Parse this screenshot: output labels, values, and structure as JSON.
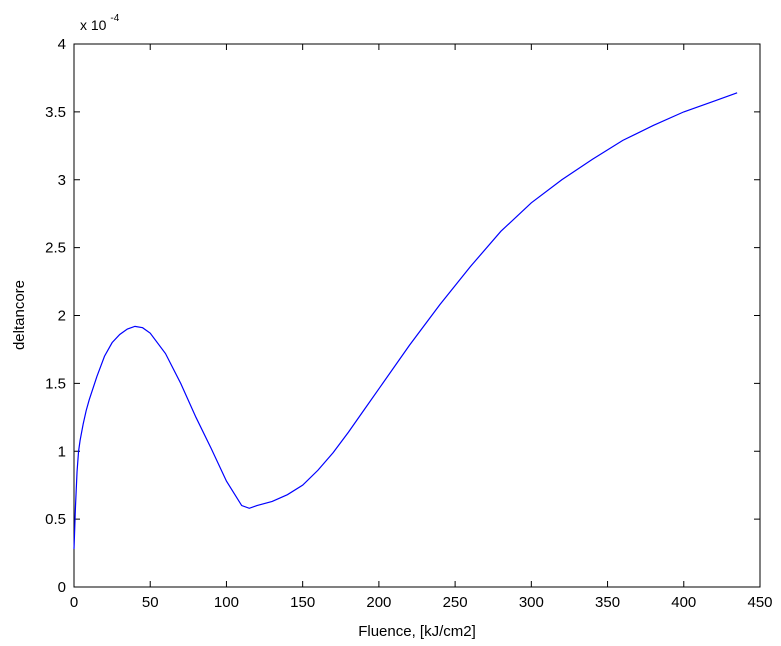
{
  "chart_data": {
    "type": "line",
    "title": "",
    "xlabel": "Fluence, [kJ/cm2]",
    "ylabel": "deltancore",
    "y_multiplier": {
      "base": "x 10",
      "exponent": "-4"
    },
    "xlim": [
      0,
      450
    ],
    "ylim": [
      0,
      4
    ],
    "xticks": [
      "0",
      "50",
      "100",
      "150",
      "200",
      "250",
      "300",
      "350",
      "400",
      "450"
    ],
    "yticks": [
      "0",
      "0.5",
      "1",
      "1.5",
      "2",
      "2.5",
      "3",
      "3.5",
      "4"
    ],
    "grid": false,
    "legend": "none",
    "series": [
      {
        "color": "#0000ff",
        "x": [
          0,
          1,
          2,
          3,
          4,
          6,
          8,
          10,
          15,
          20,
          25,
          30,
          35,
          40,
          45,
          50,
          60,
          70,
          80,
          90,
          100,
          110,
          115,
          120,
          130,
          140,
          150,
          160,
          170,
          180,
          190,
          200,
          220,
          240,
          260,
          280,
          300,
          320,
          340,
          360,
          380,
          400,
          420,
          435
        ],
        "y": [
          0.28,
          0.6,
          0.85,
          1.0,
          1.08,
          1.2,
          1.3,
          1.38,
          1.55,
          1.7,
          1.8,
          1.86,
          1.9,
          1.92,
          1.91,
          1.87,
          1.72,
          1.5,
          1.25,
          1.02,
          0.78,
          0.6,
          0.58,
          0.6,
          0.63,
          0.68,
          0.75,
          0.86,
          0.99,
          1.14,
          1.3,
          1.46,
          1.78,
          2.08,
          2.36,
          2.62,
          2.83,
          3.0,
          3.15,
          3.29,
          3.4,
          3.5,
          3.58,
          3.64
        ]
      }
    ]
  }
}
